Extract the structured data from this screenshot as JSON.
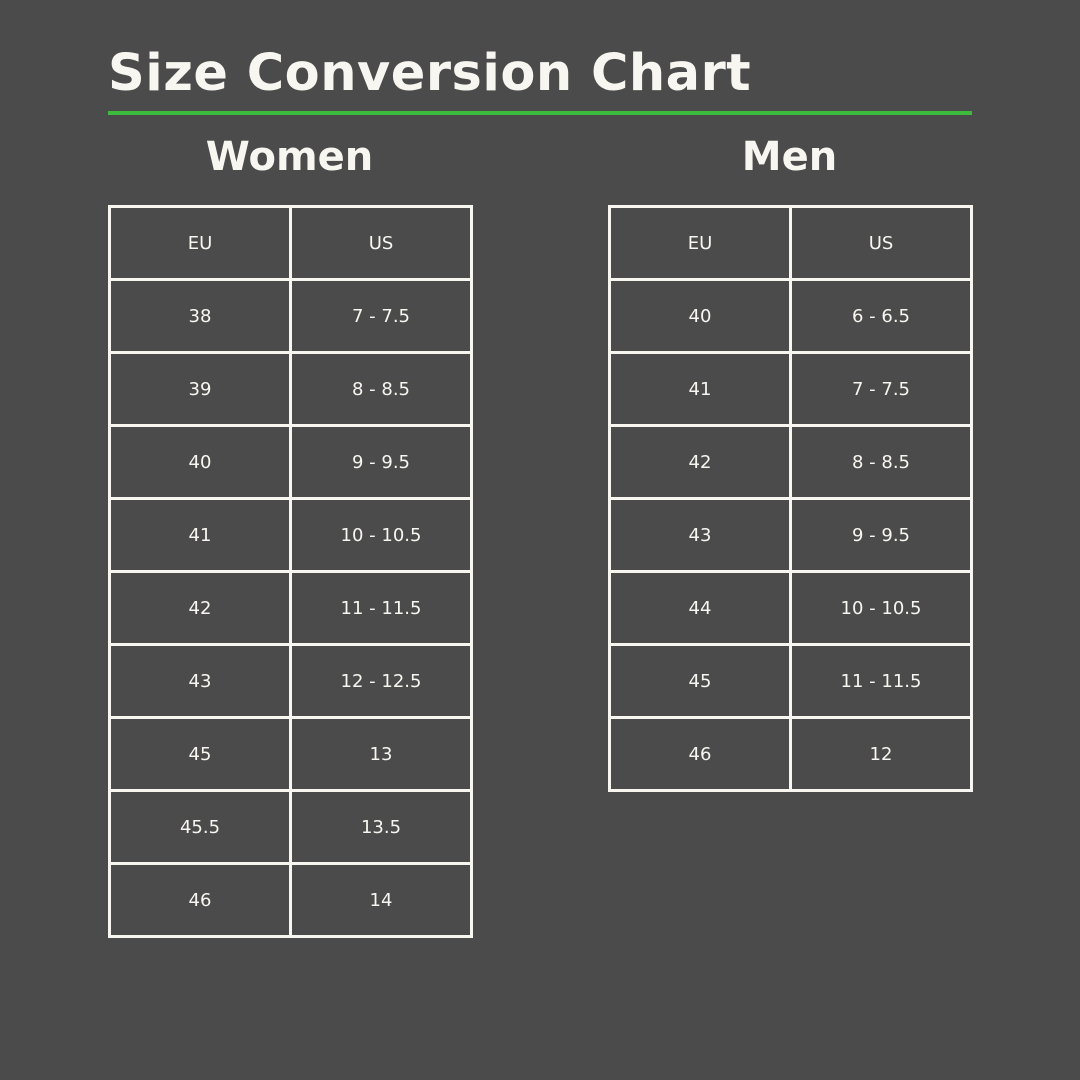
{
  "title": "Size Conversion Chart",
  "colors": {
    "background": "#4b4b4b",
    "text": "#f8f6f0",
    "accent": "#3dbb3d"
  },
  "women": {
    "heading": "Women",
    "columns": [
      "EU",
      "US"
    ],
    "rows": [
      [
        "38",
        "7 - 7.5"
      ],
      [
        "39",
        "8 - 8.5"
      ],
      [
        "40",
        "9 - 9.5"
      ],
      [
        "41",
        "10 - 10.5"
      ],
      [
        "42",
        "11 - 11.5"
      ],
      [
        "43",
        "12 - 12.5"
      ],
      [
        "45",
        "13"
      ],
      [
        "45.5",
        "13.5"
      ],
      [
        "46",
        "14"
      ]
    ]
  },
  "men": {
    "heading": "Men",
    "columns": [
      "EU",
      "US"
    ],
    "rows": [
      [
        "40",
        "6 - 6.5"
      ],
      [
        "41",
        "7 - 7.5"
      ],
      [
        "42",
        "8 - 8.5"
      ],
      [
        "43",
        "9 - 9.5"
      ],
      [
        "44",
        "10 - 10.5"
      ],
      [
        "45",
        "11 - 11.5"
      ],
      [
        "46",
        "12"
      ]
    ]
  }
}
